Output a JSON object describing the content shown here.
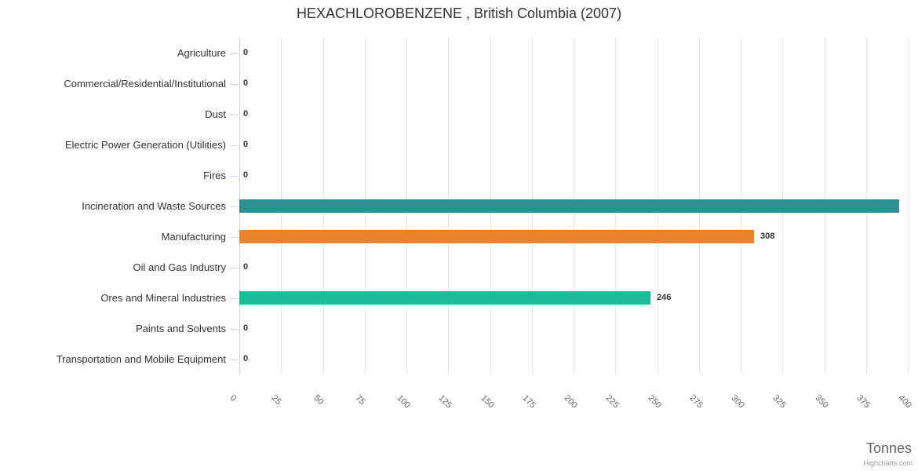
{
  "chart_data": {
    "type": "bar",
    "orientation": "horizontal",
    "title": "HEXACHLOROBENZENE , British Columbia (2007)",
    "categories": [
      "Agriculture",
      "Commercial/Residential/Institutional",
      "Dust",
      "Electric Power Generation (Utilities)",
      "Fires",
      "Incineration and Waste Sources",
      "Manufacturing",
      "Oil and Gas Industry",
      "Ores and Mineral Industries",
      "Paints and Solvents",
      "Transportation and Mobile Equipment"
    ],
    "values": [
      0,
      0,
      0,
      0,
      0,
      395,
      308,
      0,
      246,
      0,
      0
    ],
    "bar_colors": [
      "",
      "",
      "",
      "",
      "",
      "#2b908f",
      "#e8842b",
      "",
      "#1ebb9b",
      "",
      ""
    ],
    "xlabel": "Tonnes",
    "ylabel": "",
    "xlim": [
      0,
      400
    ],
    "x_ticks": [
      0,
      25,
      50,
      75,
      100,
      125,
      150,
      175,
      200,
      225,
      250,
      275,
      300,
      325,
      350,
      375,
      400
    ],
    "tick_label_rotation_deg": 45,
    "grid": "vertical",
    "legend": "none",
    "data_labels_shown": true,
    "colors": {
      "grid_line": "#e6e6e6",
      "axis_line": "#ccd6eb",
      "tick_mark": "#ccd6eb",
      "title_text": "#333333",
      "category_label_text": "#333333",
      "tick_label_text": "#666666",
      "data_label_text": "#333333",
      "axis_title_text": "#666666",
      "credits_text": "#999999",
      "background": "#ffffff"
    }
  },
  "credits": {
    "label": "Highcharts.com"
  }
}
